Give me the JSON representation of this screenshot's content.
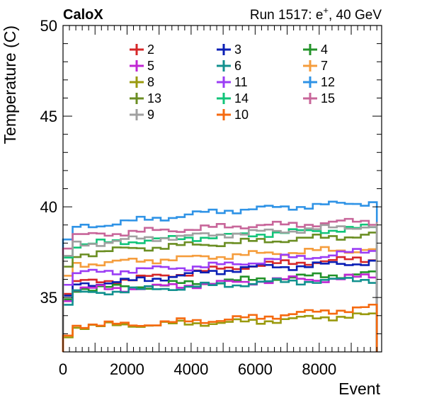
{
  "header": {
    "left": "CaloX",
    "right_main": "Run 1517: e",
    "right_sup": "+",
    "right_tail": ", 40 GeV"
  },
  "chart_data": {
    "type": "line",
    "style": "step",
    "xlabel": "Event",
    "ylabel": "Temperature (C)",
    "xlim": [
      0,
      9950
    ],
    "ylim": [
      32,
      50
    ],
    "x_ticks": [
      0,
      2000,
      4000,
      6000,
      8000
    ],
    "y_ticks": [
      35,
      40,
      45,
      50
    ],
    "grid": false,
    "legend_position": "top, 3 columns",
    "x": [
      0,
      1000,
      2000,
      3000,
      4000,
      5000,
      6000,
      7000,
      8000,
      9000,
      9800
    ],
    "series": [
      {
        "name": "2",
        "color": "#d62728",
        "values": [
          35.8,
          35.9,
          36.0,
          36.2,
          36.4,
          36.6,
          36.8,
          36.9,
          37.0,
          37.1,
          37.1
        ]
      },
      {
        "name": "3",
        "color": "#0b1fb5",
        "values": [
          35.7,
          35.8,
          35.9,
          36.1,
          36.3,
          36.5,
          36.7,
          36.7,
          36.8,
          36.9,
          37.0
        ]
      },
      {
        "name": "4",
        "color": "#23932a",
        "values": [
          35.5,
          35.5,
          35.6,
          35.7,
          35.8,
          35.9,
          36.0,
          36.1,
          36.2,
          36.3,
          36.3
        ]
      },
      {
        "name": "5",
        "color": "#c026d3",
        "values": [
          35.4,
          35.5,
          35.5,
          35.6,
          35.7,
          35.8,
          35.9,
          36.0,
          36.0,
          36.1,
          36.2
        ]
      },
      {
        "name": "6",
        "color": "#12918f",
        "values": [
          35.2,
          35.3,
          35.4,
          35.5,
          35.6,
          35.7,
          35.8,
          35.9,
          35.9,
          36.0,
          36.0
        ]
      },
      {
        "name": "7",
        "color": "#f59d3d",
        "values": [
          36.8,
          36.9,
          37.0,
          37.1,
          37.2,
          37.3,
          37.4,
          37.5,
          37.6,
          37.6,
          37.7
        ]
      },
      {
        "name": "8",
        "color": "#9a9a0e",
        "values": [
          33.4,
          33.4,
          33.5,
          33.5,
          33.6,
          33.6,
          33.7,
          33.8,
          33.9,
          34.0,
          34.0
        ]
      },
      {
        "name": "11",
        "color": "#9b3df5",
        "values": [
          36.3,
          36.4,
          36.5,
          36.6,
          36.7,
          36.8,
          37.0,
          37.2,
          37.3,
          37.5,
          37.6
        ]
      },
      {
        "name": "12",
        "color": "#2f93e6",
        "values": [
          38.8,
          39.0,
          39.2,
          39.4,
          39.6,
          39.8,
          39.9,
          40.0,
          40.1,
          40.2,
          40.3
        ]
      },
      {
        "name": "13",
        "color": "#6b8e23",
        "values": [
          37.3,
          37.5,
          37.7,
          37.8,
          37.9,
          38.0,
          38.1,
          38.2,
          38.3,
          38.4,
          38.5
        ]
      },
      {
        "name": "14",
        "color": "#12c47a",
        "values": [
          37.8,
          38.0,
          38.1,
          38.2,
          38.3,
          38.4,
          38.5,
          38.6,
          38.7,
          38.8,
          38.9
        ]
      },
      {
        "name": "15",
        "color": "#c8669a",
        "values": [
          38.3,
          38.5,
          38.6,
          38.7,
          38.8,
          38.9,
          39.0,
          39.0,
          39.1,
          39.2,
          39.2
        ]
      },
      {
        "name": "9",
        "color": "#a0a0a0",
        "values": [
          37.9,
          38.0,
          38.2,
          38.3,
          38.4,
          38.5,
          38.6,
          38.7,
          38.8,
          38.9,
          39.0
        ]
      },
      {
        "name": "10",
        "color": "#f56a10",
        "values": [
          33.5,
          33.5,
          33.5,
          33.6,
          33.7,
          33.8,
          33.9,
          34.1,
          34.2,
          34.4,
          34.5
        ]
      }
    ]
  }
}
